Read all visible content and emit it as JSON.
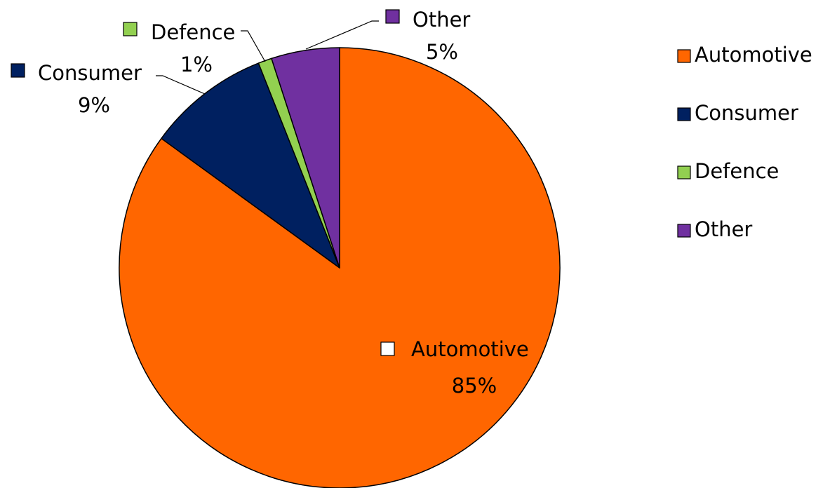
{
  "chart_data": {
    "type": "pie",
    "title": "",
    "categories": [
      "Automotive",
      "Consumer",
      "Defence",
      "Other"
    ],
    "values": [
      85,
      9,
      1,
      5
    ],
    "value_labels": [
      "85%",
      "9%",
      "1%",
      "5%"
    ],
    "colors": [
      "#FF6600",
      "#002060",
      "#92D050",
      "#7030A0"
    ],
    "start_angle_deg": 0,
    "direction": "clockwise",
    "legend": {
      "position": "right",
      "entries": [
        "Automotive",
        "Consumer",
        "Defence",
        "Other"
      ]
    },
    "data_labels": [
      {
        "category": "Automotive",
        "name": "Automotive",
        "percent": "85%",
        "show_key_on_label": true,
        "leader_line": false
      },
      {
        "category": "Consumer",
        "name": "Consumer",
        "percent": "9%",
        "show_key_on_label": true,
        "leader_line": true
      },
      {
        "category": "Defence",
        "name": "Defence",
        "percent": "1%",
        "show_key_on_label": true,
        "leader_line": true
      },
      {
        "category": "Other",
        "name": "Other",
        "percent": "5%",
        "show_key_on_label": true,
        "leader_line": true
      }
    ]
  }
}
